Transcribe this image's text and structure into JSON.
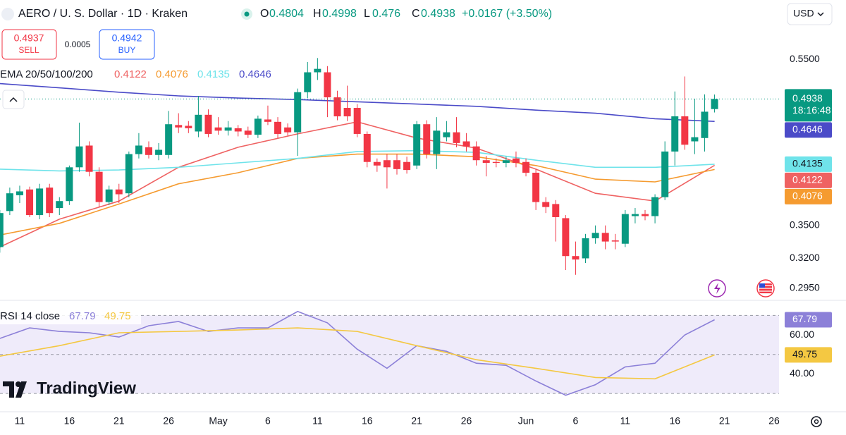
{
  "header": {
    "symbol": "AERO / U. S. Dollar · 1D · Kraken",
    "o_label": "O",
    "h_label": "H",
    "l_label": "L",
    "c_label": "C",
    "change": "+0.0167 (+3.50%)",
    "currency": "USD"
  },
  "trade": {
    "sell_price": 0.4937,
    "sell": "SELL",
    "spread": 0.0005,
    "buy_price": 0.4942,
    "buy": "BUY"
  },
  "countdown": "18:16:48",
  "brand": "TradingView",
  "chart_data": [
    {
      "type": "candlestick",
      "log_scale": true,
      "up_color": "#089981",
      "down_color": "#f23645",
      "legend_title": "EMA 20/50/100/200",
      "x": [
        "Apr 9",
        "Apr 10",
        "Apr 11",
        "Apr 12",
        "Apr 13",
        "Apr 14",
        "Apr 15",
        "Apr 16",
        "Apr 17",
        "Apr 18",
        "Apr 19",
        "Apr 20",
        "Apr 21",
        "Apr 22",
        "Apr 23",
        "Apr 24",
        "Apr 25",
        "Apr 26",
        "Apr 27",
        "Apr 28",
        "Apr 29",
        "Apr 30",
        "May 1",
        "May 2",
        "May 3",
        "May 4",
        "May 5",
        "May 6",
        "May 7",
        "May 8",
        "May 9",
        "May 10",
        "May 11",
        "May 12",
        "May 13",
        "May 14",
        "May 15",
        "May 16",
        "May 17",
        "May 18",
        "May 19",
        "May 20",
        "May 21",
        "May 22",
        "May 23",
        "May 24",
        "May 25",
        "May 26",
        "May 27",
        "May 28",
        "May 29",
        "May 30",
        "May 31",
        "Jun 1",
        "Jun 2",
        "Jun 3",
        "Jun 4",
        "Jun 5",
        "Jun 6",
        "Jun 7",
        "Jun 8",
        "Jun 9",
        "Jun 10",
        "Jun 11",
        "Jun 12",
        "Jun 13",
        "Jun 14",
        "Jun 15",
        "Jun 16",
        "Jun 17",
        "Jun 18",
        "Jun 19",
        "Jun 20"
      ],
      "open": [
        0.33,
        0.364,
        0.38,
        0.386,
        0.36,
        0.388,
        0.367,
        0.374,
        0.41,
        0.435,
        0.405,
        0.373,
        0.386,
        0.382,
        0.425,
        0.433,
        0.424,
        0.424,
        0.46,
        0.459,
        0.452,
        0.473,
        0.457,
        0.453,
        0.456,
        0.453,
        0.448,
        0.467,
        0.464,
        0.457,
        0.451,
        0.503,
        0.531,
        0.531,
        0.496,
        0.482,
        0.482,
        0.449,
        0.416,
        0.418,
        0.418,
        0.416,
        0.412,
        0.461,
        0.425,
        0.445,
        0.451,
        0.44,
        0.434,
        0.418,
        0.416,
        0.415,
        0.42,
        0.416,
        0.404,
        0.373,
        0.371,
        0.357,
        0.322,
        0.32,
        0.338,
        0.343,
        0.336,
        0.333,
        0.359,
        0.361,
        0.359,
        0.378,
        0.428,
        0.471,
        0.44,
        0.444,
        0.4804
      ],
      "high": [
        0.365,
        0.388,
        0.39,
        0.389,
        0.392,
        0.392,
        0.378,
        0.412,
        0.463,
        0.44,
        0.41,
        0.39,
        0.392,
        0.428,
        0.45,
        0.44,
        0.438,
        0.478,
        0.475,
        0.465,
        0.498,
        0.48,
        0.47,
        0.465,
        0.46,
        0.458,
        0.472,
        0.485,
        0.47,
        0.462,
        0.508,
        0.546,
        0.552,
        0.54,
        0.505,
        0.512,
        0.487,
        0.452,
        0.42,
        0.425,
        0.425,
        0.422,
        0.465,
        0.466,
        0.47,
        0.465,
        0.47,
        0.45,
        0.44,
        0.423,
        0.42,
        0.422,
        0.428,
        0.42,
        0.408,
        0.378,
        0.375,
        0.36,
        0.335,
        0.342,
        0.35,
        0.35,
        0.342,
        0.365,
        0.367,
        0.365,
        0.381,
        0.44,
        0.504,
        0.525,
        0.494,
        0.5,
        0.4998
      ],
      "low": [
        0.325,
        0.36,
        0.372,
        0.358,
        0.356,
        0.358,
        0.36,
        0.37,
        0.405,
        0.4,
        0.368,
        0.37,
        0.372,
        0.378,
        0.42,
        0.42,
        0.418,
        0.42,
        0.45,
        0.45,
        0.445,
        0.445,
        0.448,
        0.447,
        0.446,
        0.444,
        0.444,
        0.46,
        0.444,
        0.447,
        0.423,
        0.495,
        0.52,
        0.47,
        0.466,
        0.465,
        0.445,
        0.41,
        0.405,
        0.387,
        0.402,
        0.403,
        0.408,
        0.42,
        0.408,
        0.44,
        0.433,
        0.428,
        0.412,
        0.4,
        0.41,
        0.41,
        0.41,
        0.4,
        0.365,
        0.362,
        0.335,
        0.31,
        0.306,
        0.316,
        0.333,
        0.328,
        0.328,
        0.33,
        0.352,
        0.355,
        0.352,
        0.375,
        0.412,
        0.43,
        0.425,
        0.428,
        0.476
      ],
      "close": [
        0.362,
        0.382,
        0.384,
        0.36,
        0.387,
        0.362,
        0.374,
        0.41,
        0.434,
        0.405,
        0.373,
        0.386,
        0.381,
        0.425,
        0.435,
        0.424,
        0.43,
        0.461,
        0.457,
        0.456,
        0.473,
        0.449,
        0.453,
        0.457,
        0.452,
        0.448,
        0.468,
        0.464,
        0.449,
        0.451,
        0.503,
        0.531,
        0.536,
        0.496,
        0.471,
        0.471,
        0.449,
        0.416,
        0.412,
        0.41,
        0.408,
        0.407,
        0.461,
        0.425,
        0.453,
        0.451,
        0.438,
        0.434,
        0.418,
        0.415,
        0.415,
        0.418,
        0.415,
        0.404,
        0.373,
        0.368,
        0.358,
        0.322,
        0.319,
        0.338,
        0.343,
        0.335,
        0.335,
        0.361,
        0.361,
        0.359,
        0.378,
        0.428,
        0.471,
        0.436,
        0.445,
        0.477,
        0.4938
      ],
      "series": [
        {
          "color": "#ef6262",
          "x": [
            "Apr 9",
            "Apr 15",
            "Apr 21",
            "Apr 27",
            "May 3",
            "May 9",
            "May 15",
            "May 21",
            "May 27",
            "Jun 2",
            "Jun 8",
            "Jun 14",
            "Jun 20"
          ],
          "values": [
            0.33,
            0.356,
            0.374,
            0.41,
            0.433,
            0.449,
            0.464,
            0.444,
            0.432,
            0.408,
            0.382,
            0.374,
            0.4122
          ]
        },
        {
          "color": "#f59b30",
          "x": [
            "Apr 9",
            "Apr 15",
            "Apr 21",
            "Apr 27",
            "May 3",
            "May 9",
            "May 15",
            "May 21",
            "May 27",
            "Jun 2",
            "Jun 8",
            "Jun 14",
            "Jun 20"
          ],
          "values": [
            0.341,
            0.352,
            0.371,
            0.392,
            0.404,
            0.42,
            0.425,
            0.425,
            0.422,
            0.412,
            0.397,
            0.394,
            0.4076
          ]
        },
        {
          "color": "#6fe3ea",
          "x": [
            "Apr 9",
            "Apr 15",
            "Apr 21",
            "Apr 27",
            "May 3",
            "May 9",
            "May 15",
            "May 21",
            "May 27",
            "Jun 2",
            "Jun 8",
            "Jun 14",
            "Jun 20"
          ],
          "values": [
            0.408,
            0.406,
            0.407,
            0.41,
            0.415,
            0.42,
            0.428,
            0.429,
            0.427,
            0.418,
            0.41,
            0.41,
            0.4135
          ]
        },
        {
          "color": "#4b4bc8",
          "x": [
            "Apr 9",
            "Apr 15",
            "Apr 21",
            "Apr 27",
            "May 3",
            "May 9",
            "May 15",
            "May 21",
            "May 27",
            "Jun 2",
            "Jun 8",
            "Jun 14",
            "Jun 20"
          ],
          "values": [
            0.515,
            0.509,
            0.503,
            0.498,
            0.495,
            0.493,
            0.49,
            0.487,
            0.484,
            0.479,
            0.475,
            0.468,
            0.4646
          ]
        }
      ],
      "ylim": [
        0.286,
        0.601
      ],
      "yticks": [
        {
          "value": 0.55,
          "label": "0.5500"
        },
        {
          "value": 0.35,
          "label": "0.3500"
        },
        {
          "value": 0.32,
          "label": "0.3200"
        },
        {
          "value": 0.295,
          "label": "0.2950"
        }
      ],
      "xticks": [
        {
          "value": "Apr 11",
          "label": "11"
        },
        {
          "value": "Apr 16",
          "label": "16"
        },
        {
          "value": "Apr 21",
          "label": "21"
        },
        {
          "value": "Apr 26",
          "label": "26"
        },
        {
          "value": "May 1",
          "label": "May"
        },
        {
          "value": "May 6",
          "label": "6"
        },
        {
          "value": "May 11",
          "label": "11"
        },
        {
          "value": "May 16",
          "label": "16"
        },
        {
          "value": "May 21",
          "label": "21"
        },
        {
          "value": "May 26",
          "label": "26"
        },
        {
          "value": "Jun 1",
          "label": "Jun"
        },
        {
          "value": "Jun 6",
          "label": "6"
        },
        {
          "value": "Jun 11",
          "label": "11"
        },
        {
          "value": "Jun 16",
          "label": "16"
        },
        {
          "value": "Jun 21",
          "label": "21"
        },
        {
          "value": "Jun 26",
          "label": "26"
        }
      ]
    },
    {
      "type": "line",
      "title": "RSI 14 close",
      "series": [
        {
          "color": "#8c80d8",
          "x": [
            "Apr 9",
            "Apr 12",
            "Apr 15",
            "Apr 18",
            "Apr 21",
            "Apr 24",
            "Apr 27",
            "Apr 30",
            "May 3",
            "May 6",
            "May 9",
            "May 12",
            "May 15",
            "May 18",
            "May 21",
            "May 24",
            "May 27",
            "May 30",
            "Jun 2",
            "Jun 5",
            "Jun 8",
            "Jun 11",
            "Jun 14",
            "Jun 17",
            "Jun 20"
          ],
          "values": [
            58.2,
            63.6,
            61.8,
            61.1,
            58.9,
            64.7,
            66.9,
            61.8,
            63.6,
            63.6,
            72.0,
            66.2,
            52.7,
            42.9,
            54.5,
            51.6,
            45.5,
            44.4,
            36.4,
            29.1,
            34.5,
            43.6,
            45.5,
            60,
            67.79
          ]
        },
        {
          "color": "#f4c842",
          "x": [
            "Apr 9",
            "Apr 15",
            "Apr 21",
            "Apr 27",
            "May 3",
            "May 9",
            "May 15",
            "May 21",
            "May 27",
            "Jun 2",
            "Jun 8",
            "Jun 14",
            "Jun 20"
          ],
          "values": [
            49.1,
            54.5,
            61.1,
            61.8,
            62.5,
            63.6,
            61.8,
            54.5,
            47.3,
            42.9,
            38.2,
            37.5,
            49.75
          ]
        }
      ],
      "levels": [
        70,
        50,
        30
      ],
      "band_color": "#efebfa",
      "ylim": [
        21,
        77
      ],
      "yticks": [
        {
          "value": 60,
          "label": "60.00"
        },
        {
          "value": 40,
          "label": "40.00"
        }
      ]
    }
  ]
}
